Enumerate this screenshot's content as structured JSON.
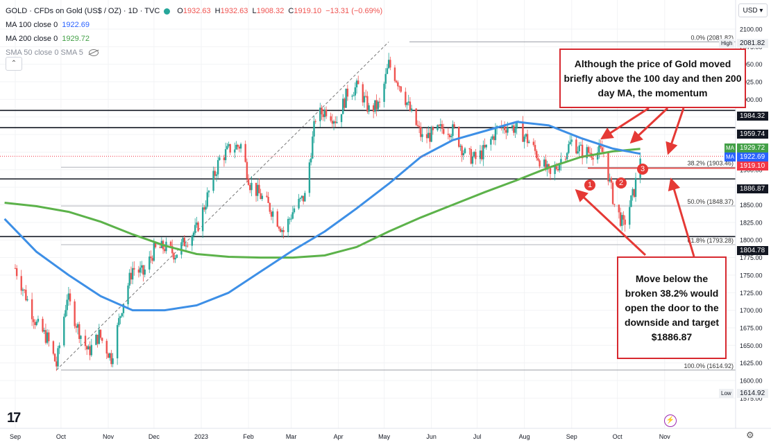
{
  "header": {
    "title": "GOLD · CFDs on Gold (US$ / OZ) · 1D · TVC",
    "ohlc": [
      {
        "k": "O",
        "v": "1932.63"
      },
      {
        "k": "H",
        "v": "1932.63"
      },
      {
        "k": "L",
        "v": "1908.32"
      },
      {
        "k": "C",
        "v": "1919.10"
      }
    ],
    "change": "−13.31 (−0.69%)",
    "status_color": "#26a69a"
  },
  "indicators": {
    "ma100_name": "MA 100 close 0",
    "ma100_value": "1922.69",
    "ma200_name": "MA 200 close 0",
    "ma200_value": "1929.72",
    "sma50_name": "SMA 50 close 0 SMA 5"
  },
  "toolbar": {
    "currency": "USD"
  },
  "colors": {
    "up": "#26a69a",
    "down": "#ef5350",
    "ma100": "#3d8fe6",
    "ma200": "#5cb24a",
    "annotation": "#e53935"
  },
  "right_axis_tags": {
    "high_label": "High",
    "high_value": "2081.82",
    "r1": "1984.32",
    "r2": "1959.74",
    "ma200": "1929.72",
    "ma100": "1922.69",
    "ma_badge": "MA",
    "last_price": "1919.10",
    "support": "1886.87",
    "low_support": "1804.78",
    "low_label": "Low",
    "low_value": "1614.92"
  },
  "annotations": {
    "callout_top": "Although the price of Gold moved briefly above the 100 day and then 200 day MA, the momentum",
    "callout_bottom": "Move below the broken 38.2% would open the door to the downside and target $1886.87",
    "markers": [
      "1",
      "2",
      "3"
    ]
  },
  "logo": "17",
  "chart_data": {
    "type": "candlestick",
    "symbol": "GOLD",
    "interval": "1D",
    "ylim": [
      1570,
      2110
    ],
    "y_ticks": [
      1575,
      1600,
      1625,
      1650,
      1675,
      1700,
      1725,
      1750,
      1775,
      1800,
      1825,
      1850,
      1875,
      1900,
      1925,
      1950,
      1975,
      2000,
      2025,
      2050,
      2075,
      2100
    ],
    "x_ticks": [
      "Sep",
      "Oct",
      "Nov",
      "Dec",
      "2023",
      "Feb",
      "Mar",
      "Apr",
      "May",
      "Jun",
      "Jul",
      "Aug",
      "Sep",
      "Oct",
      "Nov"
    ],
    "fib_levels": [
      {
        "label": "0.0% (2081.82)",
        "value": 2081.82
      },
      {
        "label": "38.2% (1903.46)",
        "value": 1903.46
      },
      {
        "label": "50.0% (1848.37)",
        "value": 1848.37
      },
      {
        "label": "61.8% (1793.28)",
        "value": 1793.28
      },
      {
        "label": "100.0% (1614.92)",
        "value": 1614.92
      }
    ],
    "horizontal_levels": [
      1984.32,
      1959.74,
      1886.87,
      1804.78
    ],
    "price_path": [
      [
        "2022-09-01",
        1760
      ],
      [
        "2022-09-08",
        1720
      ],
      [
        "2022-09-15",
        1680
      ],
      [
        "2022-09-22",
        1660
      ],
      [
        "2022-09-28",
        1622
      ],
      [
        "2022-10-05",
        1720
      ],
      [
        "2022-10-12",
        1675
      ],
      [
        "2022-10-19",
        1640
      ],
      [
        "2022-10-26",
        1665
      ],
      [
        "2022-11-03",
        1632
      ],
      [
        "2022-11-10",
        1705
      ],
      [
        "2022-11-17",
        1760
      ],
      [
        "2022-11-24",
        1752
      ],
      [
        "2022-12-01",
        1785
      ],
      [
        "2022-12-08",
        1790
      ],
      [
        "2022-12-15",
        1780
      ],
      [
        "2022-12-22",
        1800
      ],
      [
        "2022-12-29",
        1815
      ],
      [
        "2023-01-06",
        1868
      ],
      [
        "2023-01-13",
        1915
      ],
      [
        "2023-01-20",
        1930
      ],
      [
        "2023-01-27",
        1935
      ],
      [
        "2023-02-02",
        1880
      ],
      [
        "2023-02-10",
        1860
      ],
      [
        "2023-02-17",
        1840
      ],
      [
        "2023-02-24",
        1812
      ],
      [
        "2023-03-03",
        1845
      ],
      [
        "2023-03-10",
        1862
      ],
      [
        "2023-03-17",
        1975
      ],
      [
        "2023-03-24",
        1985
      ],
      [
        "2023-03-31",
        1970
      ],
      [
        "2023-04-07",
        2010
      ],
      [
        "2023-04-14",
        2018
      ],
      [
        "2023-04-21",
        1985
      ],
      [
        "2023-04-28",
        1992
      ],
      [
        "2023-05-04",
        2050
      ],
      [
        "2023-05-12",
        2018
      ],
      [
        "2023-05-19",
        1978
      ],
      [
        "2023-05-26",
        1945
      ],
      [
        "2023-06-02",
        1950
      ],
      [
        "2023-06-09",
        1960
      ],
      [
        "2023-06-16",
        1955
      ],
      [
        "2023-06-23",
        1922
      ],
      [
        "2023-06-30",
        1915
      ],
      [
        "2023-07-07",
        1930
      ],
      [
        "2023-07-14",
        1958
      ],
      [
        "2023-07-21",
        1962
      ],
      [
        "2023-07-28",
        1958
      ],
      [
        "2023-08-04",
        1940
      ],
      [
        "2023-08-11",
        1915
      ],
      [
        "2023-08-18",
        1890
      ],
      [
        "2023-08-25",
        1915
      ],
      [
        "2023-09-01",
        1940
      ],
      [
        "2023-09-08",
        1925
      ],
      [
        "2023-09-15",
        1925
      ],
      [
        "2023-09-22",
        1925
      ],
      [
        "2023-09-29",
        1850
      ],
      [
        "2023-10-05",
        1820
      ],
      [
        "2023-10-12",
        1870
      ],
      [
        "2023-10-16",
        1919.1
      ]
    ],
    "ma100": [
      [
        "2022-08-25",
        1830
      ],
      [
        "2022-09-15",
        1783
      ],
      [
        "2022-10-06",
        1750
      ],
      [
        "2022-10-27",
        1720
      ],
      [
        "2022-11-17",
        1700
      ],
      [
        "2022-12-08",
        1700
      ],
      [
        "2022-12-29",
        1707
      ],
      [
        "2023-01-19",
        1725
      ],
      [
        "2023-02-09",
        1755
      ],
      [
        "2023-03-02",
        1785
      ],
      [
        "2023-03-23",
        1812
      ],
      [
        "2023-04-13",
        1845
      ],
      [
        "2023-05-04",
        1880
      ],
      [
        "2023-05-25",
        1918
      ],
      [
        "2023-06-15",
        1942
      ],
      [
        "2023-07-06",
        1955
      ],
      [
        "2023-07-27",
        1968
      ],
      [
        "2023-08-17",
        1963
      ],
      [
        "2023-09-07",
        1945
      ],
      [
        "2023-09-28",
        1930
      ],
      [
        "2023-10-16",
        1922.69
      ]
    ],
    "ma200": [
      [
        "2022-08-25",
        1853
      ],
      [
        "2022-09-15",
        1848
      ],
      [
        "2022-10-06",
        1840
      ],
      [
        "2022-10-27",
        1826
      ],
      [
        "2022-11-17",
        1808
      ],
      [
        "2022-12-08",
        1792
      ],
      [
        "2022-12-29",
        1780
      ],
      [
        "2023-01-19",
        1776
      ],
      [
        "2023-02-09",
        1775
      ],
      [
        "2023-03-02",
        1775
      ],
      [
        "2023-03-23",
        1778
      ],
      [
        "2023-04-13",
        1790
      ],
      [
        "2023-05-04",
        1812
      ],
      [
        "2023-05-25",
        1832
      ],
      [
        "2023-06-15",
        1850
      ],
      [
        "2023-07-06",
        1868
      ],
      [
        "2023-07-27",
        1885
      ],
      [
        "2023-08-17",
        1903
      ],
      [
        "2023-09-07",
        1918
      ],
      [
        "2023-09-28",
        1926
      ],
      [
        "2023-10-16",
        1929.72
      ]
    ],
    "last_price": 1919.1
  }
}
